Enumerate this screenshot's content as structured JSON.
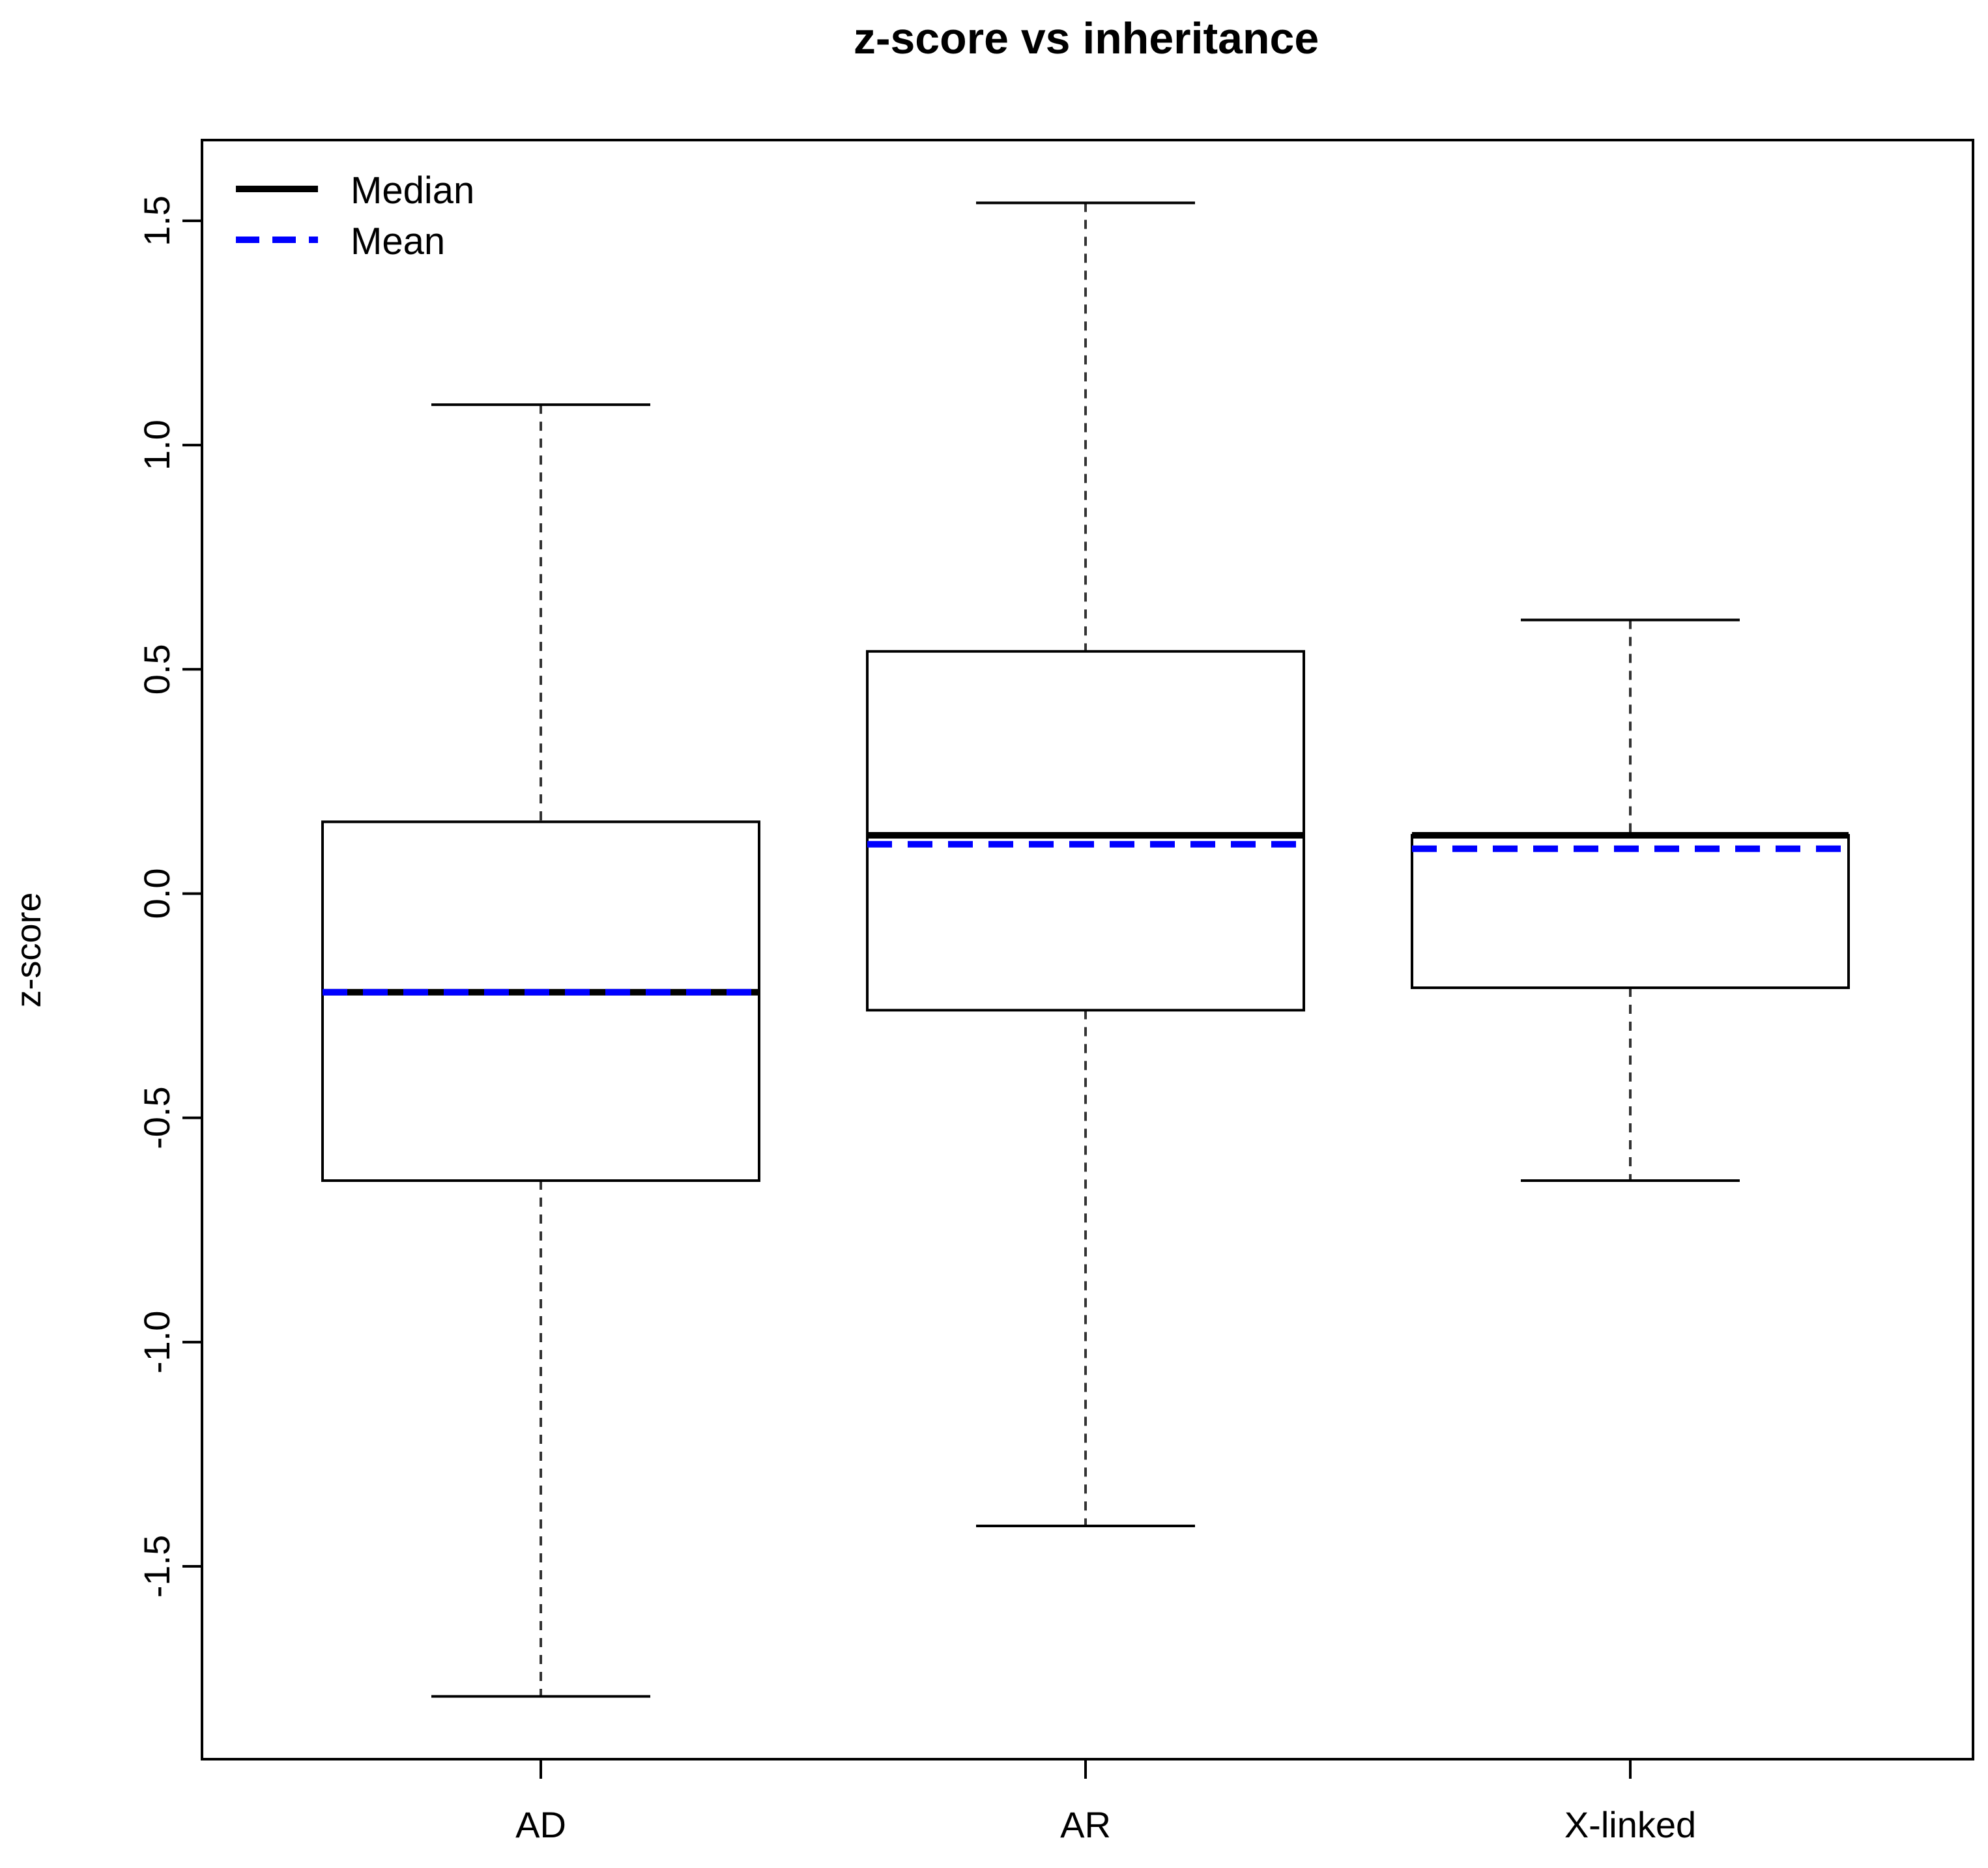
{
  "chart_data": {
    "type": "boxplot",
    "title": "z-score vs inheritance",
    "xlabel": "",
    "ylabel": "z-score",
    "ylim": [
      -1.93,
      1.68
    ],
    "yticks": [
      -1.5,
      -1.0,
      -0.5,
      0.0,
      0.5,
      1.0,
      1.5
    ],
    "ytick_labels": [
      "-1.5",
      "-1.0",
      "-0.5",
      "0.0",
      "0.5",
      "1.0",
      "1.5"
    ],
    "grid": false,
    "legend": {
      "placement": "top-left",
      "entries": [
        {
          "label": "Median",
          "style": "solid",
          "color": "#000000"
        },
        {
          "label": "Mean",
          "style": "dashed",
          "color": "#0000ff"
        }
      ]
    },
    "categories": [
      "AD",
      "AR",
      "X-linked"
    ],
    "boxes": [
      {
        "category": "AD",
        "whisker_low": -1.79,
        "q1": -0.64,
        "median": -0.22,
        "q3": 0.16,
        "whisker_high": 1.09,
        "mean": -0.22
      },
      {
        "category": "AR",
        "whisker_low": -1.41,
        "q1": -0.26,
        "median": 0.13,
        "q3": 0.54,
        "whisker_high": 1.54,
        "mean": 0.11
      },
      {
        "category": "X-linked",
        "whisker_low": -0.64,
        "q1": -0.21,
        "median": 0.13,
        "q3": 0.13,
        "whisker_high": 0.61,
        "mean": 0.1
      }
    ],
    "colors": {
      "median": "#000000",
      "mean": "#0000ff",
      "box": "#000000",
      "whisker": "#333333"
    }
  }
}
